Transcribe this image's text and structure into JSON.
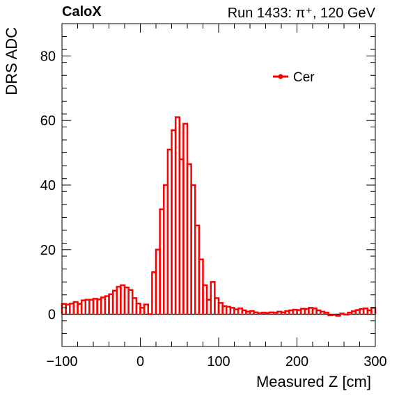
{
  "header": {
    "experiment": "CaloX",
    "run_info": "Run 1433:   π⁺, 120 GeV"
  },
  "chart_data": {
    "type": "bar",
    "style": "step-histogram",
    "title": "",
    "xlabel": "Measured Z [cm]",
    "ylabel": "DRS ADC",
    "xlim": [
      -100,
      300
    ],
    "ylim": [
      -10,
      90
    ],
    "xticks": [
      -100,
      0,
      100,
      200,
      300
    ],
    "xtick_labels": [
      "−100",
      "0",
      "100",
      "200",
      "300"
    ],
    "yticks": [
      0,
      20,
      40,
      60,
      80
    ],
    "bin_width": 5,
    "legend": {
      "placement": "top-right"
    },
    "zero_line": true,
    "grid": false,
    "series": [
      {
        "name": "Cer",
        "color": "#ff0000",
        "values": [
          3.2,
          3.0,
          3.3,
          3.8,
          3.2,
          4.3,
          4.5,
          4.5,
          4.8,
          4.6,
          5.2,
          5.6,
          6.2,
          7.3,
          8.5,
          9.0,
          8.3,
          7.5,
          5.0,
          3.3,
          2.0,
          3.0,
          0.0,
          13.0,
          20.0,
          32.5,
          40.0,
          51.0,
          57.0,
          61.0,
          48.0,
          59.0,
          46.5,
          40.0,
          27.5,
          17.0,
          9.0,
          4.5,
          10.0,
          5.0,
          3.5,
          2.5,
          2.3,
          2.0,
          1.5,
          1.8,
          1.2,
          0.8,
          1.0,
          0.6,
          0.3,
          0.5,
          0.4,
          0.6,
          0.5,
          0.8,
          0.6,
          1.0,
          1.2,
          1.4,
          1.3,
          1.7,
          1.6,
          2.0,
          1.8,
          1.2,
          0.8,
          0.5,
          -0.3,
          -0.2,
          -0.5,
          0.2,
          -0.1,
          0.5,
          0.9,
          1.3,
          1.6,
          1.8,
          1.2,
          2.0
        ]
      }
    ]
  }
}
